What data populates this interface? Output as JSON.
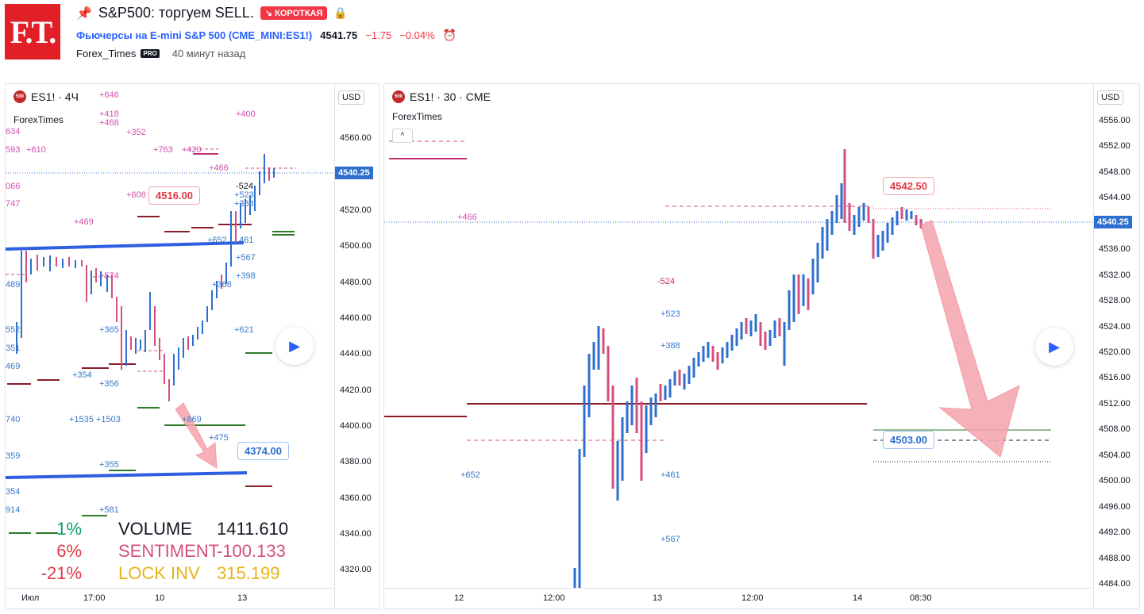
{
  "header": {
    "logo_text": "F.T.",
    "title": "S&P500: торгуем SELL.",
    "badge": "↘ КОРОТКАЯ",
    "symbol_name": "Фьючерсы на E-mini S&P 500",
    "symbol_code": "(CME_MINI:ES1!)",
    "price": "4541.75",
    "change": "−1.75",
    "change_pct": "−0.04%",
    "author": "Forex_Times",
    "pro_badge": "PRO",
    "time_ago": "40 минут назад"
  },
  "left_chart": {
    "legend_symbol": "ES1! · 4Ч",
    "legend_icon": "500",
    "indicator": "ForexTimes",
    "currency": "USD",
    "current_price": "4540.25",
    "price_ticks": [
      "4560.00",
      "4540.00",
      "4520.00",
      "4500.00",
      "4480.00",
      "4460.00",
      "4440.00",
      "4420.00",
      "4400.00",
      "4380.00",
      "4360.00",
      "4340.00",
      "4320.00"
    ],
    "time_labels": [
      "Июл",
      "17:00",
      "10",
      "13"
    ],
    "callout_high": "4516.00",
    "callout_low": "4374.00",
    "annotations_pink": [
      "+646",
      "+418",
      "+468",
      "+352",
      "+400",
      "+763",
      "+420",
      "+466",
      "+610",
      "-524",
      "+608",
      "+469",
      "634",
      "593",
      "066",
      "747",
      "+574"
    ],
    "annotations_blue": [
      "+523",
      "+388",
      "+652",
      "461",
      "+567",
      "+398",
      "+368",
      "+621",
      "+365",
      "+354",
      "+356",
      "+1535 +1503",
      "+869",
      "+475",
      "+355",
      "+581",
      "489",
      "552",
      "351",
      "469",
      "740",
      "359",
      "354",
      "914"
    ],
    "stats": [
      {
        "pct": "1%",
        "label": "VOLUME",
        "value": "1411.610"
      },
      {
        "pct": "6%",
        "label": "SENTIMENT",
        "value": "-100.133"
      },
      {
        "pct": "-21%",
        "label": "LOCK INV",
        "value": "315.199"
      }
    ],
    "colors": {
      "pct1": "#0e9a6e",
      "pct2": "#e03a44",
      "pct3": "#e03a44",
      "label1": "#131722",
      "label2": "#d44f7e",
      "label3": "#e8b317"
    }
  },
  "right_chart": {
    "legend_symbol": "ES1! · 30 · CME",
    "legend_icon": "500",
    "indicator": "ForexTimes",
    "currency": "USD",
    "current_price": "4540.25",
    "price_ticks": [
      "4556.00",
      "4552.00",
      "4548.00",
      "4544.00",
      "4540.00",
      "4536.00",
      "4532.00",
      "4528.00",
      "4524.00",
      "4520.00",
      "4516.00",
      "4512.00",
      "4508.00",
      "4504.00",
      "4500.00",
      "4496.00",
      "4492.00",
      "4488.00",
      "4484.00"
    ],
    "time_labels": [
      "12",
      "12:00",
      "13",
      "12:00",
      "14",
      "08:30"
    ],
    "callout_high": "4542.50",
    "callout_low": "4503.00",
    "annotations": {
      "a466": "+466",
      "a524": "-524",
      "a523": "+523",
      "a388": "+388",
      "a652": "+652",
      "a461": "+461",
      "a567": "+567"
    }
  }
}
